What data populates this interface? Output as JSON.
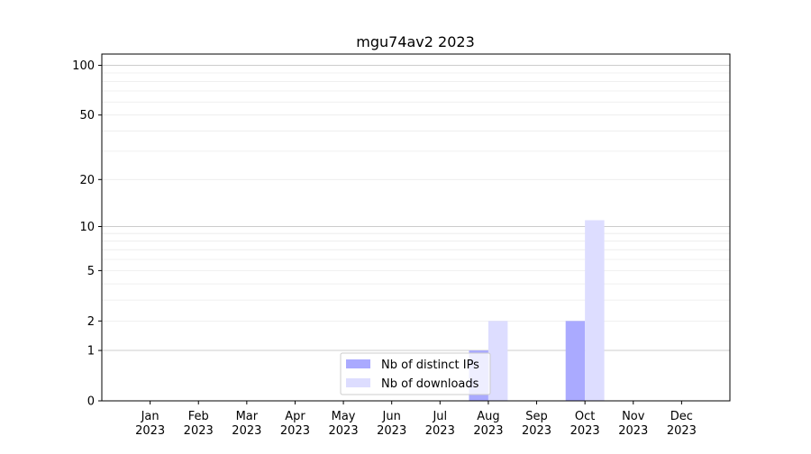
{
  "chart_data": {
    "type": "bar",
    "title": "mgu74av2 2023",
    "xlabel": "",
    "ylabel": "",
    "categories": [
      "Jan\n2023",
      "Feb\n2023",
      "Mar\n2023",
      "Apr\n2023",
      "May\n2023",
      "Jun\n2023",
      "Jul\n2023",
      "Aug\n2023",
      "Sep\n2023",
      "Oct\n2023",
      "Nov\n2023",
      "Dec\n2023"
    ],
    "series": [
      {
        "name": "Nb of distinct IPs",
        "color": "#aaaaff",
        "values": [
          0,
          0,
          0,
          0,
          0,
          0,
          0,
          1,
          0,
          2,
          0,
          0
        ]
      },
      {
        "name": "Nb of downloads",
        "color": "#ddddff",
        "values": [
          0,
          0,
          0,
          0,
          0,
          0,
          0,
          2,
          0,
          11,
          0,
          0
        ]
      }
    ],
    "yscale": "log(1+y)",
    "ylim": [
      0,
      117
    ],
    "yticks": [
      0,
      1,
      2,
      5,
      10,
      20,
      50,
      100
    ],
    "grid": true,
    "legend": "bottom-center"
  }
}
